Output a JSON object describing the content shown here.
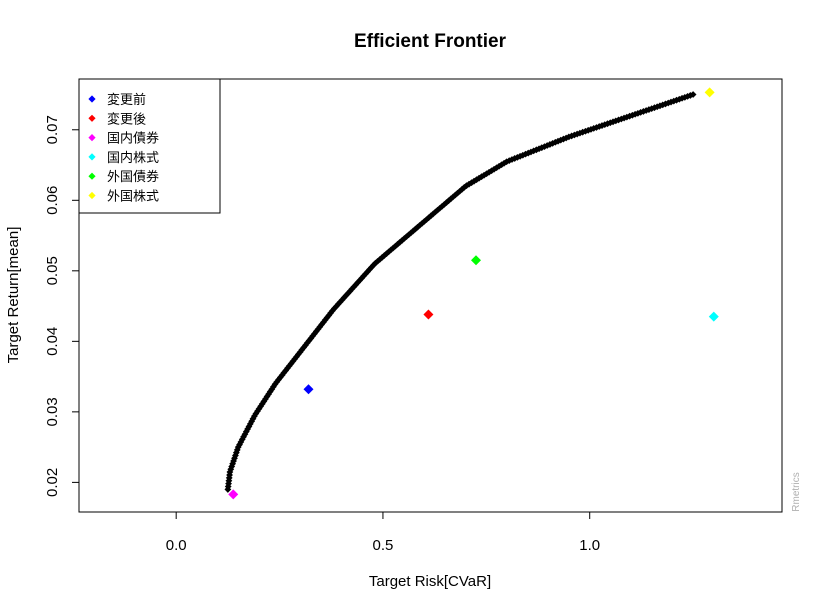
{
  "chart_data": {
    "type": "scatter",
    "title": "Efficient Frontier",
    "xlabel": "Target Risk[CVaR]",
    "ylabel": "Target Return[mean]",
    "xlim": [
      -0.235,
      1.465
    ],
    "ylim": [
      0.0158,
      0.0772
    ],
    "x_ticks": [
      0.0,
      0.5,
      1.0
    ],
    "x_tick_labels": [
      "0.0",
      "0.5",
      "1.0"
    ],
    "y_ticks": [
      0.02,
      0.03,
      0.04,
      0.05,
      0.06,
      0.07
    ],
    "y_tick_labels": [
      "0.02",
      "0.03",
      "0.04",
      "0.05",
      "0.06",
      "0.07"
    ],
    "grid": false,
    "legend_position": "top-left",
    "frontier_color": "#000000",
    "frontier_knots": [
      [
        0.125,
        0.019
      ],
      [
        0.13,
        0.0215
      ],
      [
        0.15,
        0.025
      ],
      [
        0.19,
        0.0295
      ],
      [
        0.24,
        0.034
      ],
      [
        0.3,
        0.0385
      ],
      [
        0.38,
        0.0445
      ],
      [
        0.48,
        0.051
      ],
      [
        0.58,
        0.056
      ],
      [
        0.7,
        0.062
      ],
      [
        0.8,
        0.0655
      ],
      [
        0.95,
        0.069
      ],
      [
        1.1,
        0.072
      ],
      [
        1.25,
        0.075
      ]
    ],
    "frontier_point_count": 220,
    "series": [
      {
        "name": "変更前",
        "color": "#0000ff",
        "x": [
          0.32
        ],
        "y": [
          0.0332
        ]
      },
      {
        "name": "変更後",
        "color": "#ff0000",
        "x": [
          0.61
        ],
        "y": [
          0.0438
        ]
      },
      {
        "name": "国内債券",
        "color": "#ff00ff",
        "x": [
          0.138
        ],
        "y": [
          0.0183
        ]
      },
      {
        "name": "国内株式",
        "color": "#00ffff",
        "x": [
          1.3
        ],
        "y": [
          0.0435
        ]
      },
      {
        "name": "外国債券",
        "color": "#00ff00",
        "x": [
          0.725
        ],
        "y": [
          0.0515
        ]
      },
      {
        "name": "外国株式",
        "color": "#ffff00",
        "x": [
          1.29
        ],
        "y": [
          0.0753
        ]
      }
    ]
  },
  "watermark": "Rmetrics"
}
